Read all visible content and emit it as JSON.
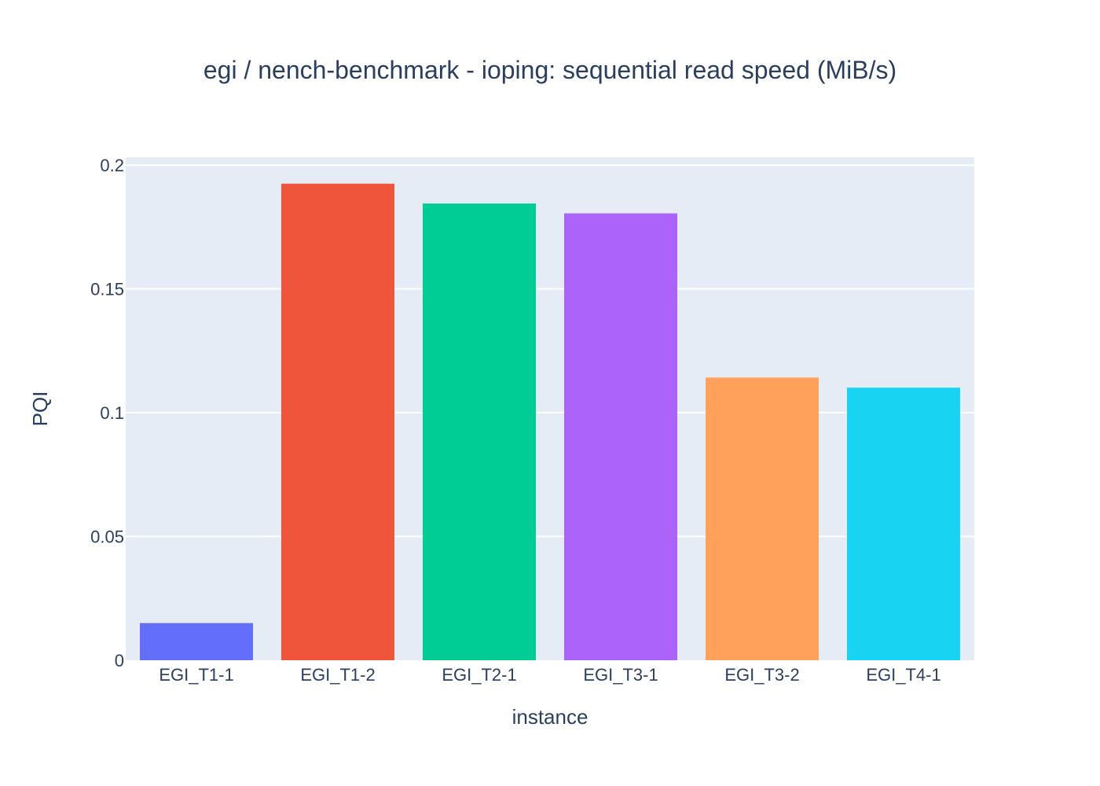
{
  "chart_data": {
    "type": "bar",
    "title": "egi / nench-benchmark - ioping: sequential read speed (MiB/s)",
    "xlabel": "instance",
    "ylabel": "PQI",
    "categories": [
      "EGI_T1-1",
      "EGI_T1-2",
      "EGI_T2-1",
      "EGI_T3-1",
      "EGI_T3-2",
      "EGI_T4-1"
    ],
    "values": [
      0.015,
      0.1925,
      0.1845,
      0.1805,
      0.1142,
      0.1101
    ],
    "colors": [
      "#636efa",
      "#ef553b",
      "#00cc96",
      "#ab63fa",
      "#ffa15a",
      "#19d3f3"
    ],
    "ylim": [
      0,
      0.2032
    ],
    "yticks": [
      0,
      0.05,
      0.1,
      0.15,
      0.2
    ],
    "ytick_labels": [
      "0",
      "0.05",
      "0.1",
      "0.15",
      "0.2"
    ],
    "grid": true,
    "plot_bgcolor": "#e5ecf6",
    "legend": "none"
  }
}
